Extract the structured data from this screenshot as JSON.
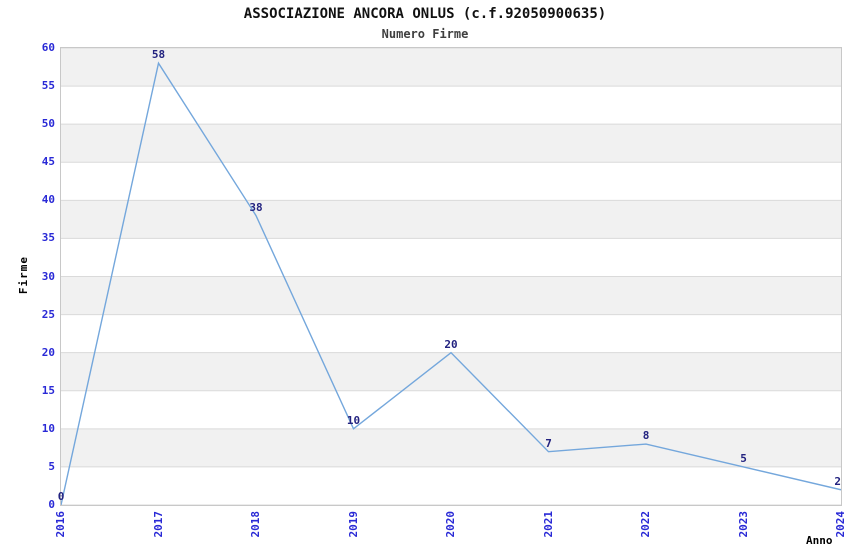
{
  "chart_data": {
    "type": "line",
    "title": "ASSOCIAZIONE ANCORA ONLUS (c.f.92050900635)",
    "subtitle": "Numero Firme",
    "xlabel": "Anno",
    "ylabel": "Firme",
    "x": [
      "2016",
      "2017",
      "2018",
      "2019",
      "2020",
      "2021",
      "2022",
      "2023",
      "2024"
    ],
    "series": [
      {
        "name": "Numero Firme",
        "values": [
          0,
          58,
          38,
          10,
          20,
          7,
          8,
          5,
          2
        ]
      }
    ],
    "point_labels": [
      "0",
      "58",
      "38",
      "10",
      "20",
      "7",
      "8",
      "5",
      "2"
    ],
    "ylim": [
      0,
      60
    ],
    "yticks": [
      0,
      5,
      10,
      15,
      20,
      25,
      30,
      35,
      40,
      45,
      50,
      55,
      60
    ],
    "grid": "horizontal-bands-alternating",
    "legend_position": "none",
    "colors": {
      "line": "#74a7dc",
      "tick_label": "#2929d6",
      "value_label": "#232380",
      "band_gray": "#f1f1f1",
      "band_white": "#ffffff",
      "grid_line": "#dadada",
      "plot_border": "#c8c8c8",
      "title": "#111111",
      "subtitle": "#3f3f3f"
    }
  }
}
